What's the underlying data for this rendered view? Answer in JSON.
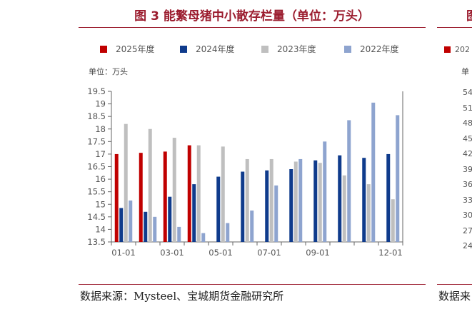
{
  "page": {
    "title": "图 3 能繁母猪中小散存栏量（单位：万头）",
    "unit_label": "单位：万头",
    "source": "数据来源：Mysteel、宝城期货金融研究所"
  },
  "chart_data": {
    "type": "bar",
    "title": "",
    "xlabel": "",
    "ylabel": "单位：万头",
    "ylim": [
      13.5,
      19.5
    ],
    "yticks": [
      13.5,
      14,
      14.5,
      15,
      15.5,
      16,
      16.5,
      17,
      17.5,
      18,
      18.5,
      19,
      19.5
    ],
    "categories": [
      "01",
      "02",
      "03",
      "04",
      "05",
      "06",
      "07",
      "08",
      "09",
      "10",
      "11",
      "12"
    ],
    "x_tick_labels": [
      "01-01",
      "",
      "03-01",
      "",
      "05-01",
      "",
      "07-01",
      "",
      "09-01",
      "",
      "",
      "12-01"
    ],
    "legend_position": "top",
    "grid": false,
    "series": [
      {
        "name": "2025年度",
        "color": "#c00000",
        "values": [
          17.0,
          17.05,
          17.1,
          17.35,
          null,
          null,
          null,
          null,
          null,
          null,
          null,
          null
        ]
      },
      {
        "name": "2024年度",
        "color": "#0f3b8c",
        "values": [
          14.85,
          14.7,
          15.3,
          15.8,
          16.1,
          16.3,
          16.35,
          16.4,
          16.75,
          16.95,
          16.85,
          17.0
        ]
      },
      {
        "name": "2023年度",
        "color": "#bfbfbf",
        "values": [
          18.2,
          18.0,
          17.65,
          17.35,
          17.3,
          16.8,
          16.8,
          16.7,
          16.65,
          16.15,
          15.8,
          15.2
        ]
      },
      {
        "name": "2022年度",
        "color": "#8ea4cf",
        "values": [
          15.15,
          14.5,
          14.1,
          13.85,
          14.25,
          14.75,
          15.75,
          16.8,
          17.5,
          18.35,
          19.05,
          18.55
        ]
      }
    ]
  },
  "right_panel": {
    "title_fragment": "图",
    "legend_fragment": "202",
    "unit_fragment": "单",
    "yticks": [
      "54",
      "51",
      "48",
      "45",
      "42",
      "39",
      "36",
      "33",
      "30",
      "27",
      "24"
    ],
    "source_fragment": "数据来"
  }
}
